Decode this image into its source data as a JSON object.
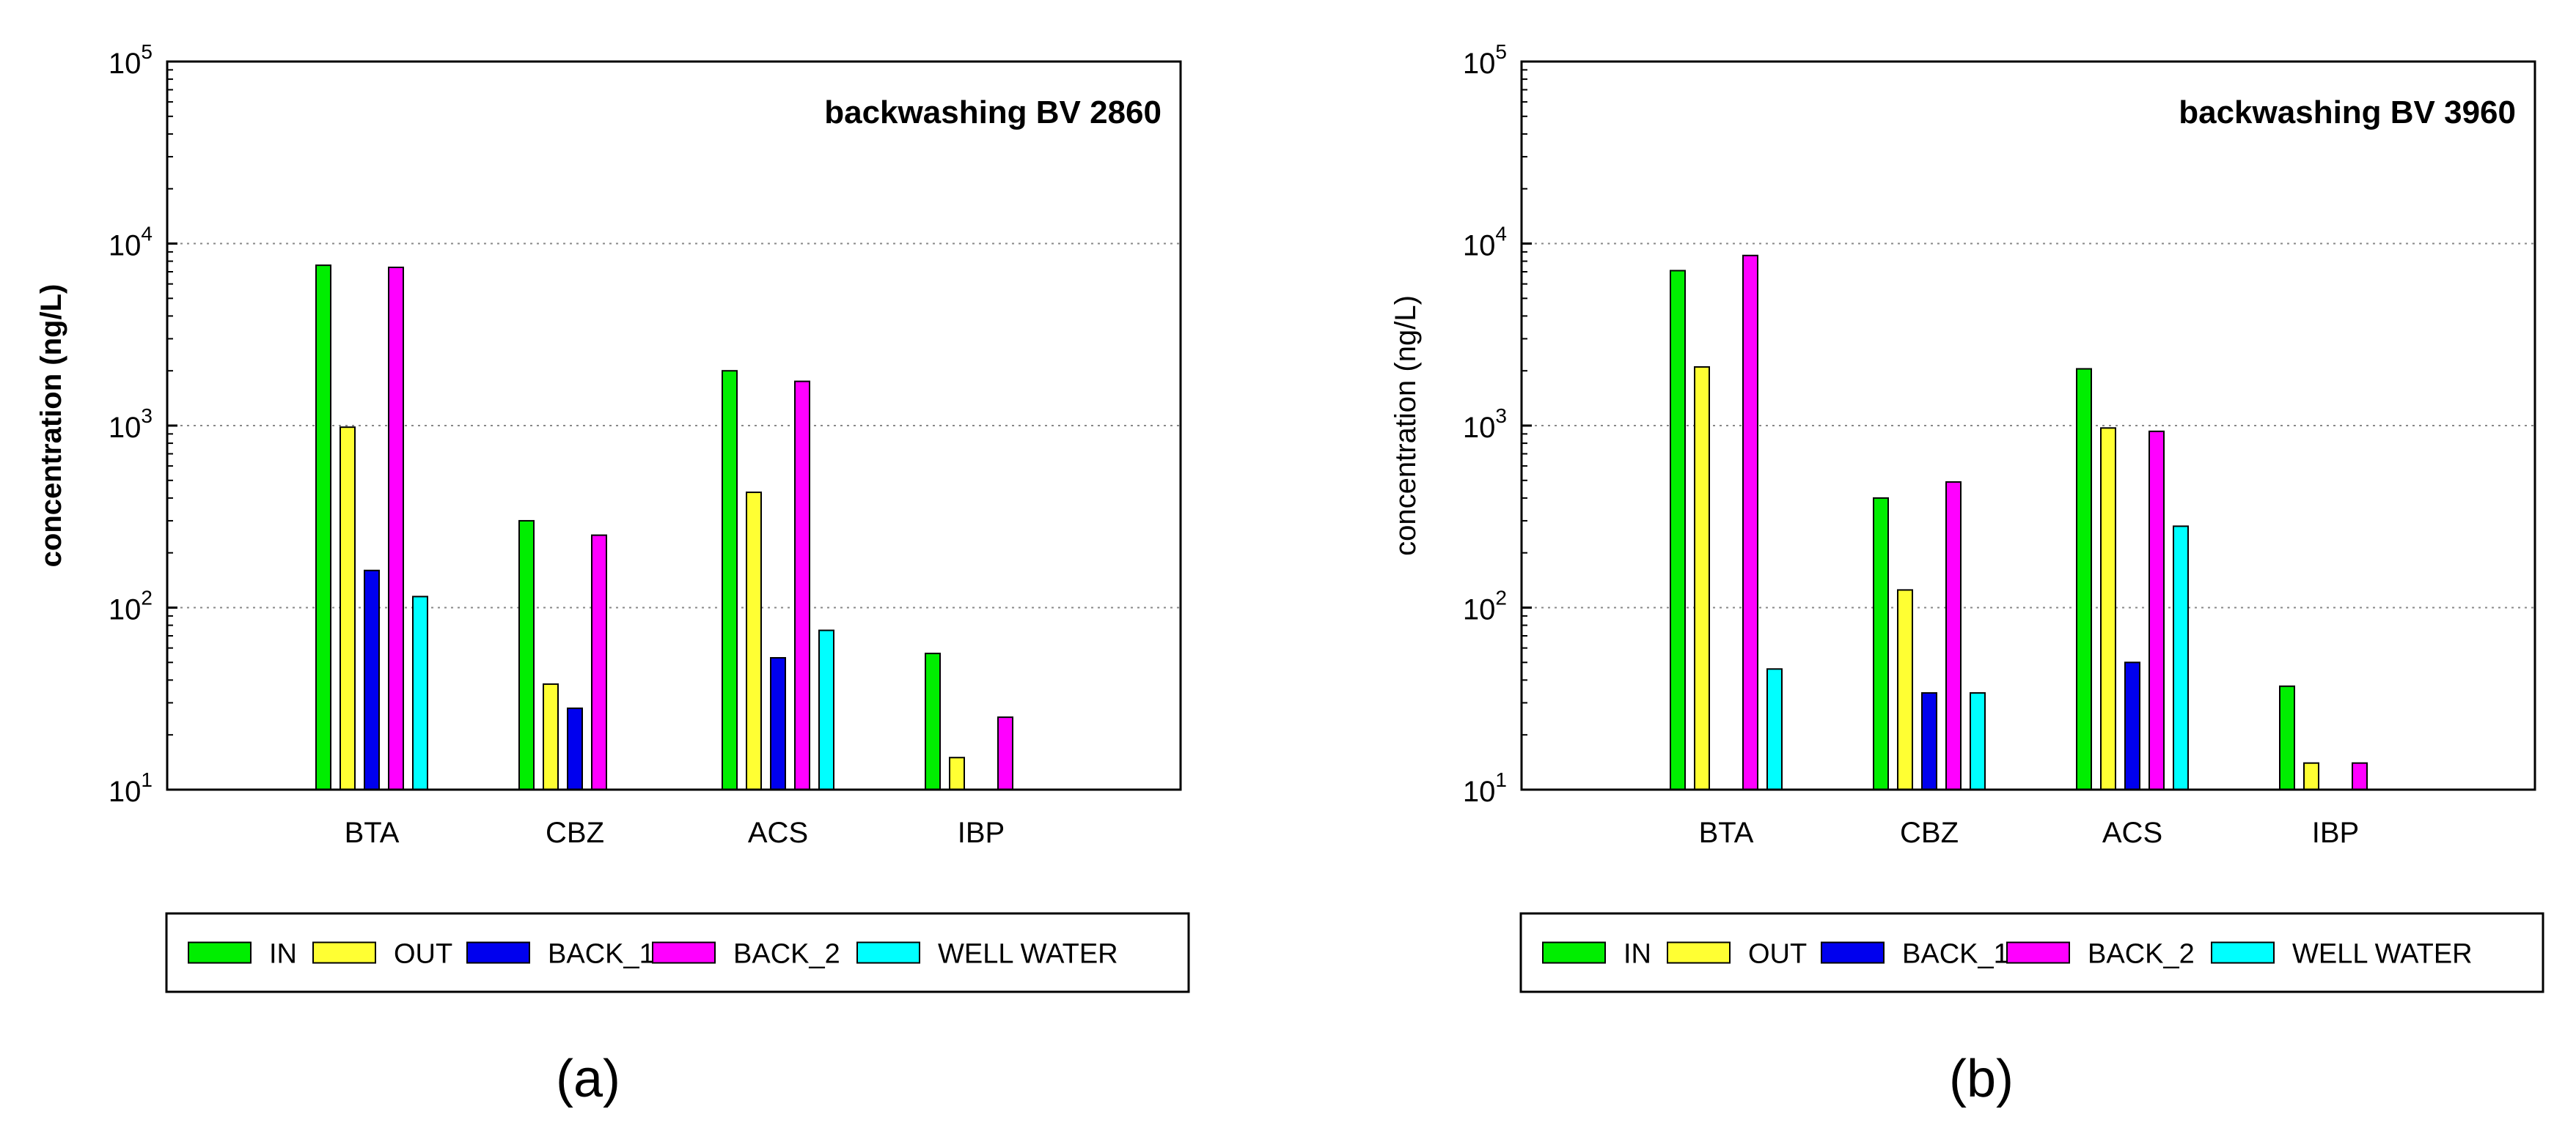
{
  "colors": {
    "IN": "#00ee00",
    "OUT": "#ffff33",
    "BACK_1": "#0000ee",
    "BACK_2": "#ff00ff",
    "WELL WATER": "#00ffff",
    "gridline": "#888888",
    "axis": "#000000"
  },
  "chart_data": [
    {
      "type": "bar",
      "panel_label": "(a)",
      "annotation": "backwashing BV 2860",
      "ylabel": "concentration (ng/L)",
      "xlabel": "",
      "yscale": "log",
      "ylim": [
        10,
        100000
      ],
      "yticks": [
        {
          "base": "10",
          "exp": "1"
        },
        {
          "base": "10",
          "exp": "2"
        },
        {
          "base": "10",
          "exp": "3"
        },
        {
          "base": "10",
          "exp": "4"
        },
        {
          "base": "10",
          "exp": "5"
        }
      ],
      "grid": "horizontal dotted at major ticks",
      "legend_position": "bottom",
      "categories": [
        "BTA",
        "CBZ",
        "ACS",
        "IBP"
      ],
      "series": [
        {
          "name": "IN",
          "values": [
            7600,
            300,
            2000,
            56
          ]
        },
        {
          "name": "OUT",
          "values": [
            980,
            38,
            430,
            15
          ]
        },
        {
          "name": "BACK_1",
          "values": [
            160,
            28,
            53,
            null
          ]
        },
        {
          "name": "BACK_2",
          "values": [
            7400,
            250,
            1750,
            25
          ]
        },
        {
          "name": "WELL WATER",
          "values": [
            115,
            null,
            75,
            null
          ]
        }
      ],
      "label_bold": true
    },
    {
      "type": "bar",
      "panel_label": "(b)",
      "annotation": "backwashing BV 3960",
      "ylabel": "concentration (ng/L)",
      "xlabel": "",
      "yscale": "log",
      "ylim": [
        10,
        100000
      ],
      "yticks": [
        {
          "base": "10",
          "exp": "1"
        },
        {
          "base": "10",
          "exp": "2"
        },
        {
          "base": "10",
          "exp": "3"
        },
        {
          "base": "10",
          "exp": "4"
        },
        {
          "base": "10",
          "exp": "5"
        }
      ],
      "grid": "horizontal dotted at major ticks",
      "legend_position": "bottom",
      "categories": [
        "BTA",
        "CBZ",
        "ACS",
        "IBP"
      ],
      "series": [
        {
          "name": "IN",
          "values": [
            7100,
            400,
            2050,
            37
          ]
        },
        {
          "name": "OUT",
          "values": [
            2100,
            125,
            970,
            14
          ]
        },
        {
          "name": "BACK_1",
          "values": [
            null,
            34,
            50,
            null
          ]
        },
        {
          "name": "BACK_2",
          "values": [
            8600,
            490,
            930,
            14
          ]
        },
        {
          "name": "WELL WATER",
          "values": [
            46,
            34,
            280,
            null
          ]
        }
      ],
      "label_bold": false
    }
  ]
}
